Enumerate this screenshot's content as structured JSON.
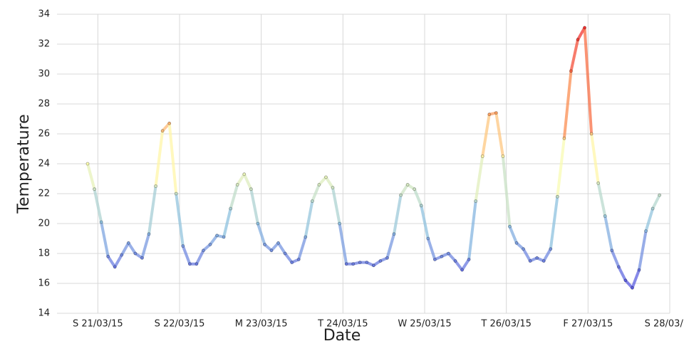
{
  "chart_data": {
    "type": "line",
    "x_label": "Date",
    "y_label": "Temperature",
    "series": [
      {
        "name": "Temperature",
        "x": [
          "2015-03-20 21:00",
          "2015-03-20 23:00",
          "2015-03-21 01:00",
          "2015-03-21 03:00",
          "2015-03-21 05:00",
          "2015-03-21 07:00",
          "2015-03-21 09:00",
          "2015-03-21 11:00",
          "2015-03-21 13:00",
          "2015-03-21 15:00",
          "2015-03-21 17:00",
          "2015-03-21 19:00",
          "2015-03-21 21:00",
          "2015-03-21 23:00",
          "2015-03-22 01:00",
          "2015-03-22 03:00",
          "2015-03-22 05:00",
          "2015-03-22 07:00",
          "2015-03-22 09:00",
          "2015-03-22 11:00",
          "2015-03-22 13:00",
          "2015-03-22 15:00",
          "2015-03-22 17:00",
          "2015-03-22 19:00",
          "2015-03-22 21:00",
          "2015-03-22 23:00",
          "2015-03-23 01:00",
          "2015-03-23 03:00",
          "2015-03-23 05:00",
          "2015-03-23 07:00",
          "2015-03-23 09:00",
          "2015-03-23 11:00",
          "2015-03-23 13:00",
          "2015-03-23 15:00",
          "2015-03-23 17:00",
          "2015-03-23 19:00",
          "2015-03-23 21:00",
          "2015-03-23 23:00",
          "2015-03-24 01:00",
          "2015-03-24 03:00",
          "2015-03-24 05:00",
          "2015-03-24 07:00",
          "2015-03-24 09:00",
          "2015-03-24 11:00",
          "2015-03-24 13:00",
          "2015-03-24 15:00",
          "2015-03-24 17:00",
          "2015-03-24 19:00",
          "2015-03-24 21:00",
          "2015-03-24 23:00",
          "2015-03-25 01:00",
          "2015-03-25 03:00",
          "2015-03-25 05:00",
          "2015-03-25 07:00",
          "2015-03-25 09:00",
          "2015-03-25 11:00",
          "2015-03-25 13:00",
          "2015-03-25 15:00",
          "2015-03-25 17:00",
          "2015-03-25 19:00",
          "2015-03-25 21:00",
          "2015-03-25 23:00",
          "2015-03-26 01:00",
          "2015-03-26 03:00",
          "2015-03-26 05:00",
          "2015-03-26 07:00",
          "2015-03-26 09:00",
          "2015-03-26 11:00",
          "2015-03-26 13:00",
          "2015-03-26 15:00",
          "2015-03-26 17:00",
          "2015-03-26 19:00",
          "2015-03-26 21:00",
          "2015-03-26 23:00",
          "2015-03-27 01:00",
          "2015-03-27 03:00",
          "2015-03-27 05:00",
          "2015-03-27 07:00",
          "2015-03-27 09:00",
          "2015-03-27 11:00",
          "2015-03-27 13:00",
          "2015-03-27 15:00",
          "2015-03-27 17:00",
          "2015-03-27 19:00",
          "2015-03-27 21:00"
        ],
        "values": [
          24.0,
          22.3,
          20.1,
          17.8,
          17.1,
          17.9,
          18.7,
          18.0,
          17.7,
          19.3,
          22.5,
          26.2,
          26.7,
          22.0,
          18.5,
          17.3,
          17.3,
          18.2,
          18.6,
          19.2,
          19.1,
          21.0,
          22.6,
          23.3,
          22.3,
          20.0,
          18.6,
          18.2,
          18.7,
          18.0,
          17.4,
          17.6,
          19.1,
          21.5,
          22.6,
          23.1,
          22.4,
          20.0,
          17.3,
          17.3,
          17.4,
          17.4,
          17.2,
          17.5,
          17.7,
          19.3,
          21.9,
          22.6,
          22.3,
          21.2,
          19.0,
          17.6,
          17.8,
          18.0,
          17.5,
          16.9,
          17.6,
          21.5,
          24.5,
          27.3,
          27.4,
          24.5,
          19.8,
          18.7,
          18.3,
          17.5,
          17.7,
          17.5,
          18.3,
          21.8,
          25.7,
          30.2,
          32.3,
          33.1,
          26.0,
          22.7,
          20.5,
          18.2,
          17.1,
          16.2,
          15.7,
          16.9,
          19.5,
          21.0,
          21.9
        ]
      }
    ],
    "color_stops": [
      {
        "value": 16,
        "color": "#5a5ae0"
      },
      {
        "value": 20,
        "color": "#8cc0e0"
      },
      {
        "value": 24,
        "color": "#ffffb0"
      },
      {
        "value": 28,
        "color": "#fb8c50"
      },
      {
        "value": 33,
        "color": "#f03030"
      }
    ],
    "xlim": [
      "2015-03-20 12:00",
      "2015-03-28 00:00"
    ],
    "xticks": [
      {
        "value": "2015-03-21 00:00",
        "label": "S 21/03/15"
      },
      {
        "value": "2015-03-22 00:00",
        "label": "S 22/03/15"
      },
      {
        "value": "2015-03-23 00:00",
        "label": "M 23/03/15"
      },
      {
        "value": "2015-03-24 00:00",
        "label": "T 24/03/15"
      },
      {
        "value": "2015-03-25 00:00",
        "label": "W 25/03/15"
      },
      {
        "value": "2015-03-26 00:00",
        "label": "T 26/03/15"
      },
      {
        "value": "2015-03-27 00:00",
        "label": "F 27/03/15"
      },
      {
        "value": "2015-03-28 00:00",
        "label": "S 28/03/15"
      }
    ],
    "ylim": [
      14,
      34
    ],
    "yticks": [
      14,
      16,
      18,
      20,
      22,
      24,
      26,
      28,
      30,
      32,
      34
    ],
    "grid": true
  }
}
